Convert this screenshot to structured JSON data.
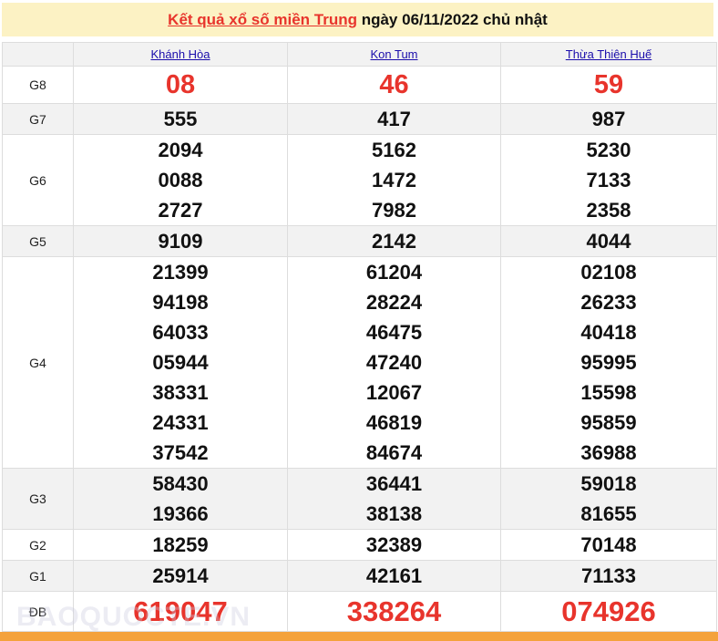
{
  "header": {
    "link_text": "Kết quả xổ số miền Trung",
    "rest_text": " ngày 06/11/2022 chủ nhật"
  },
  "provinces": [
    "Khánh Hòa",
    "Kon Tum",
    "Thừa Thiên Huế"
  ],
  "rows": [
    {
      "label": "G8",
      "values": [
        [
          "08"
        ],
        [
          "46"
        ],
        [
          "59"
        ]
      ]
    },
    {
      "label": "G7",
      "values": [
        [
          "555"
        ],
        [
          "417"
        ],
        [
          "987"
        ]
      ]
    },
    {
      "label": "G6",
      "values": [
        [
          "2094",
          "0088",
          "2727"
        ],
        [
          "5162",
          "1472",
          "7982"
        ],
        [
          "5230",
          "7133",
          "2358"
        ]
      ]
    },
    {
      "label": "G5",
      "values": [
        [
          "9109"
        ],
        [
          "2142"
        ],
        [
          "4044"
        ]
      ]
    },
    {
      "label": "G4",
      "values": [
        [
          "21399",
          "94198",
          "64033",
          "05944",
          "38331",
          "24331",
          "37542"
        ],
        [
          "61204",
          "28224",
          "46475",
          "47240",
          "12067",
          "46819",
          "84674"
        ],
        [
          "02108",
          "26233",
          "40418",
          "95995",
          "15598",
          "95859",
          "36988"
        ]
      ]
    },
    {
      "label": "G3",
      "values": [
        [
          "58430",
          "19366"
        ],
        [
          "36441",
          "38138"
        ],
        [
          "59018",
          "81655"
        ]
      ]
    },
    {
      "label": "G2",
      "values": [
        [
          "18259"
        ],
        [
          "32389"
        ],
        [
          "70148"
        ]
      ]
    },
    {
      "label": "G1",
      "values": [
        [
          "25914"
        ],
        [
          "42161"
        ],
        [
          "71133"
        ]
      ]
    },
    {
      "label": "ĐB",
      "values": [
        [
          "619047"
        ],
        [
          "338264"
        ],
        [
          "074926"
        ]
      ]
    }
  ],
  "watermark": "BAOQUOCTE.VN",
  "colors": {
    "accent": "#e8342c",
    "title_bg": "#fcf2c4",
    "footer": "#f4a23c"
  }
}
